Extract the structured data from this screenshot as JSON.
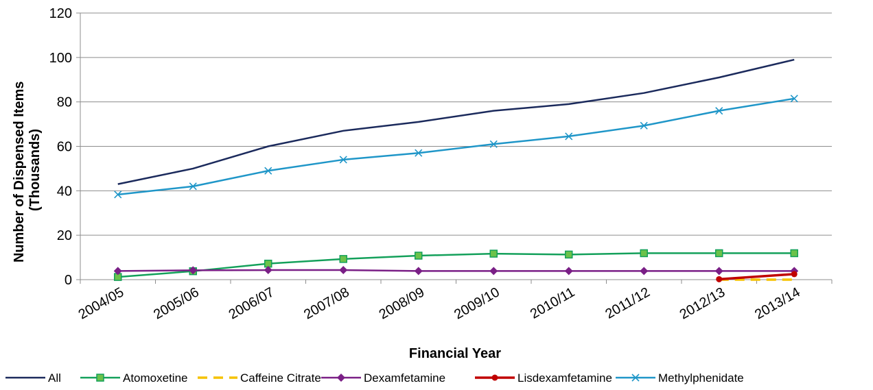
{
  "chart_data": {
    "type": "line",
    "title": "",
    "xlabel": "Financial Year",
    "ylabel_lines": [
      "Number of Dispensed Items",
      "(Thousands)"
    ],
    "ylim": [
      0,
      120
    ],
    "yticks": [
      0,
      20,
      40,
      60,
      80,
      100,
      120
    ],
    "grid": true,
    "legend_position": "bottom",
    "categories": [
      "2004/05",
      "2005/06",
      "2006/07",
      "2007/08",
      "2008/09",
      "2009/10",
      "2010/11",
      "2011/12",
      "2012/13",
      "2013/14"
    ],
    "series": [
      {
        "name": "All",
        "color": "#1b2a5c",
        "marker": "none",
        "dash": "solid",
        "values": [
          43,
          50,
          60,
          67,
          71,
          76,
          79,
          84,
          91,
          99
        ]
      },
      {
        "name": "Atomoxetine",
        "color": "#13a05a",
        "marker": "square",
        "dash": "solid",
        "values": [
          1.2,
          3.8,
          7.2,
          9.3,
          10.8,
          11.7,
          11.3,
          11.9,
          11.9,
          11.9
        ]
      },
      {
        "name": "Caffeine Citrate",
        "color": "#f5c200",
        "marker": "none",
        "dash": "dashed",
        "values": [
          null,
          null,
          null,
          null,
          null,
          null,
          null,
          null,
          0,
          0
        ]
      },
      {
        "name": "Dexamfetamine",
        "color": "#7a1f86",
        "marker": "diamond",
        "dash": "solid",
        "values": [
          3.9,
          4.2,
          4.3,
          4.3,
          3.9,
          3.9,
          3.9,
          3.9,
          3.9,
          3.9
        ]
      },
      {
        "name": "Lisdexamfetamine",
        "color": "#c00000",
        "marker": "circle",
        "dash": "solid",
        "values": [
          null,
          null,
          null,
          null,
          null,
          null,
          null,
          null,
          0.2,
          2.5
        ]
      },
      {
        "name": "Methylphenidate",
        "color": "#1f96c8",
        "marker": "x",
        "dash": "solid",
        "values": [
          38.3,
          42,
          49,
          54,
          57,
          61,
          64.5,
          69.3,
          76,
          81.5
        ]
      }
    ]
  }
}
